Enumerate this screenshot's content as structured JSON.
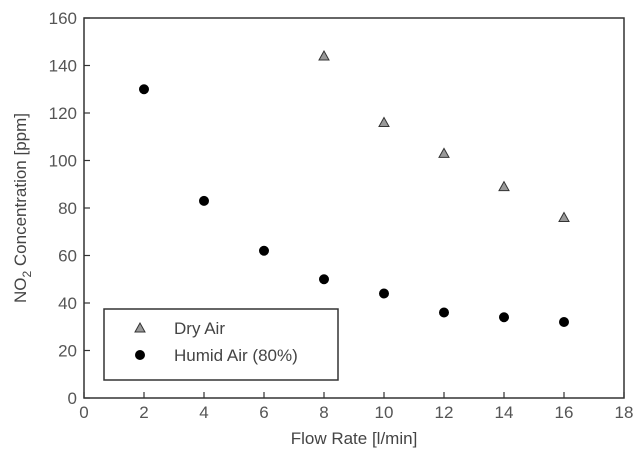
{
  "chart_data": {
    "type": "scatter",
    "xlabel": "Flow Rate [l/min]",
    "ylabel": {
      "prefix": "NO",
      "subscript": "2",
      "suffix": " Concentration [ppm]"
    },
    "xlim": [
      0,
      18
    ],
    "ylim": [
      0,
      160
    ],
    "xticks": [
      "0",
      "2",
      "4",
      "6",
      "8",
      "10",
      "12",
      "14",
      "16",
      "18"
    ],
    "yticks": [
      "0",
      "20",
      "40",
      "60",
      "80",
      "100",
      "120",
      "140",
      "160"
    ],
    "grid": false,
    "legend_position": "bottom-left",
    "series": [
      {
        "name": "Dry Air",
        "marker": "triangle",
        "color": "#999999",
        "x": [
          8,
          10,
          12,
          14,
          16
        ],
        "y": [
          144,
          116,
          103,
          89,
          76
        ]
      },
      {
        "name": "Humid Air (80%)",
        "marker": "circle",
        "color": "#000000",
        "x": [
          2,
          4,
          6,
          8,
          10,
          12,
          14,
          16
        ],
        "y": [
          130,
          83,
          62,
          50,
          44,
          36,
          34,
          32
        ]
      }
    ]
  }
}
